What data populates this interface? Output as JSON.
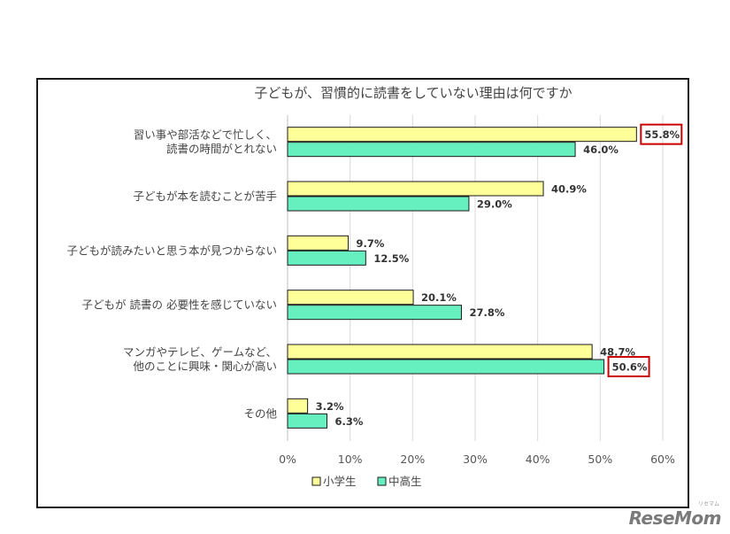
{
  "chart_data": {
    "type": "bar",
    "orientation": "horizontal",
    "title": "子どもが、習慣的に読書をしていない理由は何ですか",
    "categories": [
      [
        "習い事や部活などで忙しく、",
        "読書の時間がとれない"
      ],
      [
        "子どもが本を読むことが苦手"
      ],
      [
        "子どもが読みたいと思う本が見つからない"
      ],
      [
        "子どもが 読書の 必要性を感じていない"
      ],
      [
        "マンガやテレビ、ゲームなど、",
        "他のことに興味・関心が高い"
      ],
      [
        "その他"
      ]
    ],
    "series": [
      {
        "name": "小学生",
        "color": "#ffff99",
        "values": [
          55.8,
          40.9,
          9.7,
          20.1,
          48.7,
          3.2
        ],
        "labels": [
          "55.8%",
          "40.9%",
          "9.7%",
          "20.1%",
          "48.7%",
          "3.2%"
        ]
      },
      {
        "name": "中高生",
        "color": "#66f0c0",
        "values": [
          46.0,
          29.0,
          12.5,
          27.8,
          50.6,
          6.3
        ],
        "labels": [
          "46.0%",
          "29.0%",
          "12.5%",
          "27.8%",
          "50.6%",
          "6.3%"
        ]
      }
    ],
    "highlighted": [
      {
        "series": 0,
        "category": 0
      },
      {
        "series": 1,
        "category": 4
      }
    ],
    "highlight_color": "#cc0000",
    "xlim": [
      0,
      60
    ],
    "ticks": [
      "0%",
      "10%",
      "20%",
      "30%",
      "40%",
      "50%",
      "60%"
    ],
    "grid": true,
    "legend_position": "bottom"
  },
  "watermark": {
    "text": "ReseMom",
    "sub": "リセマム"
  }
}
